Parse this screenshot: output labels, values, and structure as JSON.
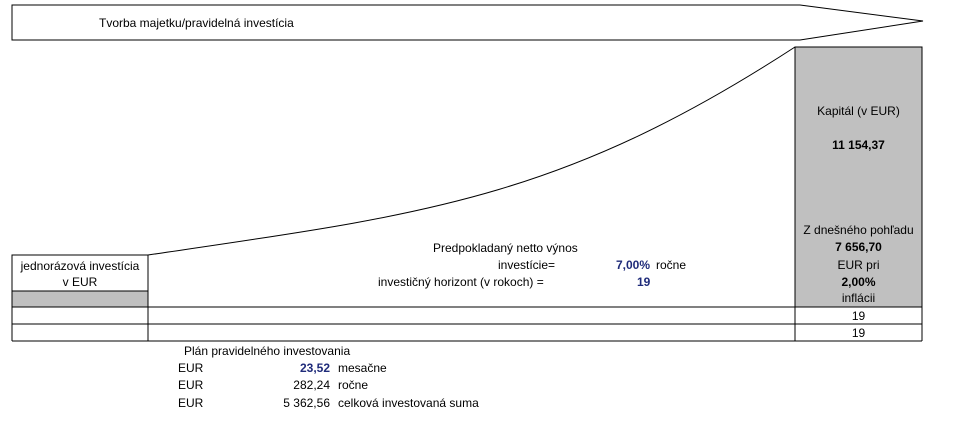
{
  "banner": {
    "title": "Tvorba majetku/pravidelná investícia"
  },
  "left_box": {
    "line1": "jednorázová investícia",
    "line2": "v EUR"
  },
  "middle": {
    "yield_label1": "Predpokladaný netto výnos",
    "yield_label2": "investície=",
    "yield_value": "7,00%",
    "yield_unit": "ročne",
    "horizon_label": "investičný horizont (v rokoch) =",
    "horizon_value": "19"
  },
  "right_box": {
    "capital_label": "Kapitál (v EUR)",
    "capital_value": "11 154,37",
    "today_label": "Z dnešného pohľadu",
    "today_value": "7 656,70",
    "eur_pri": "EUR pri",
    "inflation_value": "2,00%",
    "inflation_label": "inflácii",
    "row1": "19",
    "row2": "19"
  },
  "plan": {
    "title": "Plán pravidelného investovania",
    "rows": [
      {
        "currency": "EUR",
        "amount": "23,52",
        "label": "mesačne"
      },
      {
        "currency": "EUR",
        "amount": "282,24",
        "label": "ročne"
      },
      {
        "currency": "EUR",
        "amount": "5 362,56",
        "label": "celková investovaná suma"
      }
    ]
  }
}
